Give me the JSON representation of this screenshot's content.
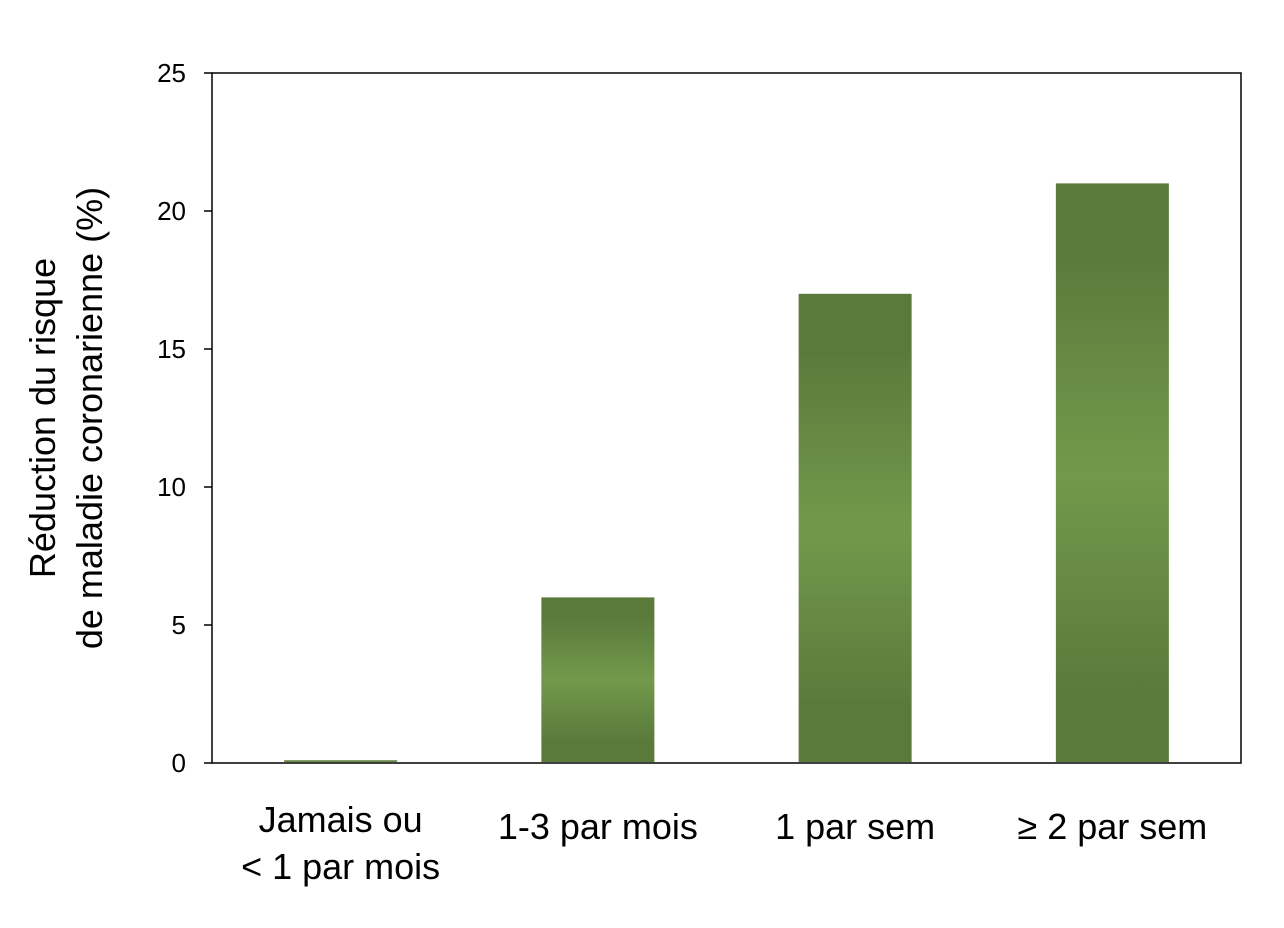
{
  "chart_data": {
    "type": "bar",
    "categories": [
      [
        "Jamais ou",
        "< 1 par mois"
      ],
      [
        "1-3 par mois"
      ],
      [
        "1 par sem"
      ],
      [
        "≥ 2 par sem"
      ]
    ],
    "values": [
      0.1,
      6,
      17,
      21
    ],
    "ylabel": [
      "Réduction du risque",
      "de maladie coronarienne (%)"
    ],
    "xlabel": "",
    "title": "",
    "ylim": [
      0,
      25
    ],
    "yticks": [
      0,
      5,
      10,
      15,
      20,
      25
    ],
    "grid": false,
    "legend": "none",
    "colors": {
      "bar_edge": "#5a7a3c",
      "bar_center": "#72994b",
      "axis": "#000000"
    }
  }
}
